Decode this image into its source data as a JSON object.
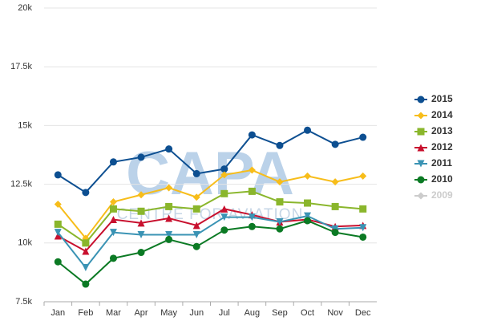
{
  "chart_data": {
    "type": "line",
    "watermark": {
      "title": "CAPA",
      "subtitle": "CENTRE FOR AVIATION"
    },
    "categories": [
      "Jan",
      "Feb",
      "Mar",
      "Apr",
      "May",
      "Jun",
      "Jul",
      "Aug",
      "Sep",
      "Oct",
      "Nov",
      "Dec"
    ],
    "ylim": [
      7500,
      20000
    ],
    "yticks": [
      {
        "value": 7500,
        "label": "7.5k"
      },
      {
        "value": 10000,
        "label": "10k"
      },
      {
        "value": 12500,
        "label": "12.5k"
      },
      {
        "value": 15000,
        "label": "15k"
      },
      {
        "value": 17500,
        "label": "17.5k"
      },
      {
        "value": 20000,
        "label": "20k"
      }
    ],
    "grid": true,
    "legend": "right",
    "series": [
      {
        "name": "2015",
        "color": "#0d4f91",
        "marker": "circle",
        "values": [
          12900,
          12150,
          13450,
          13650,
          14000,
          12950,
          13150,
          14600,
          14150,
          14800,
          14200,
          14500
        ]
      },
      {
        "name": "2014",
        "color": "#f7bd1a",
        "marker": "diamond",
        "values": [
          11650,
          10200,
          11750,
          12050,
          12350,
          11950,
          12900,
          13100,
          12600,
          12850,
          12600,
          12850
        ]
      },
      {
        "name": "2013",
        "color": "#8ab62c",
        "marker": "square",
        "values": [
          10800,
          10000,
          11450,
          11350,
          11550,
          11450,
          12100,
          12200,
          11750,
          11700,
          11550,
          11450
        ]
      },
      {
        "name": "2012",
        "color": "#c8102e",
        "marker": "triangle",
        "values": [
          10300,
          9650,
          11000,
          10850,
          11050,
          10750,
          11450,
          11200,
          10900,
          11000,
          10700,
          10750
        ]
      },
      {
        "name": "2011",
        "color": "#3a93b4",
        "marker": "triangle-down",
        "values": [
          10450,
          8950,
          10450,
          10350,
          10350,
          10350,
          11100,
          11100,
          10900,
          11150,
          10600,
          10650
        ]
      },
      {
        "name": "2010",
        "color": "#0b7a24",
        "marker": "circle",
        "values": [
          9200,
          8250,
          9350,
          9600,
          10150,
          9850,
          10550,
          10700,
          10600,
          10950,
          10450,
          10250
        ]
      },
      {
        "name": "2009",
        "color": "#cccccc",
        "marker": "diamond",
        "hidden": true,
        "values": [
          null,
          null,
          null,
          null,
          null,
          null,
          null,
          null,
          null,
          null,
          null,
          null
        ]
      }
    ]
  }
}
